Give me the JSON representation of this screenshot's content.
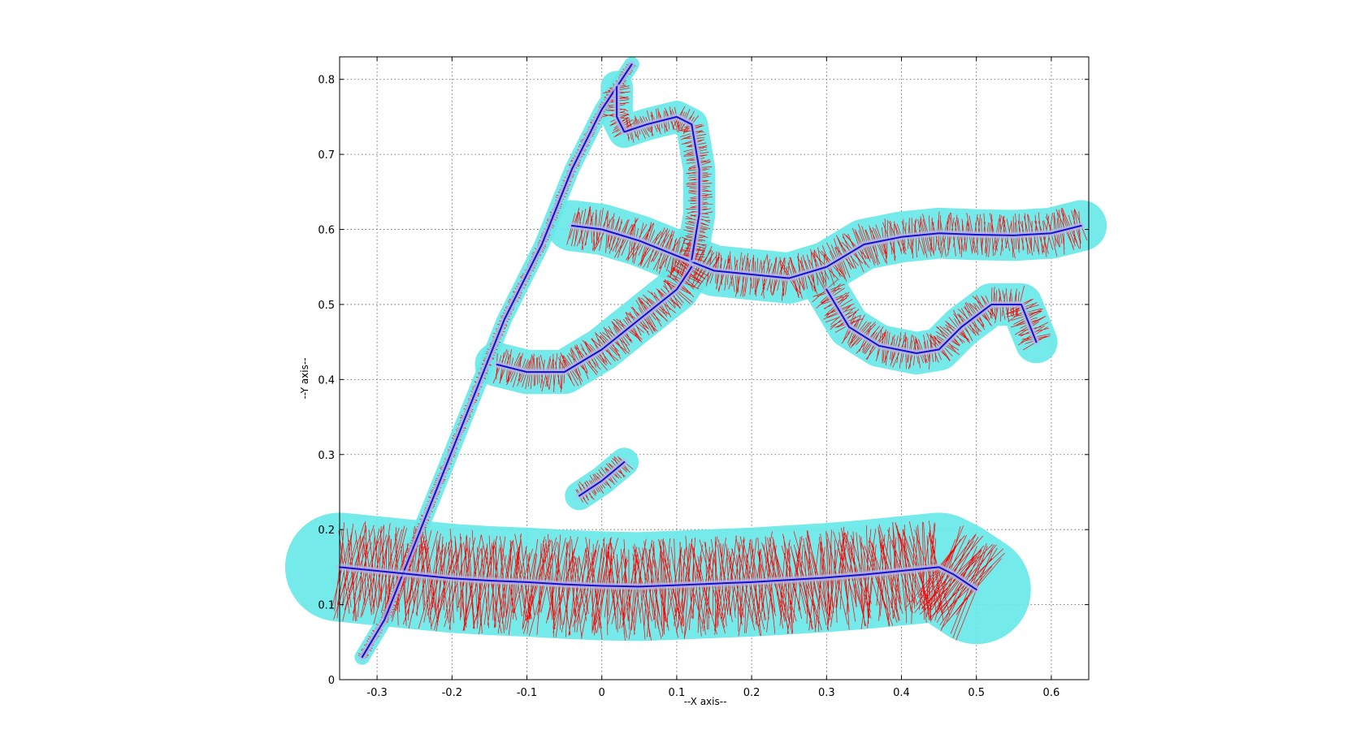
{
  "chart_data": {
    "type": "scatter",
    "title": "",
    "xlabel": "--X axis--",
    "ylabel": "--Y axis--",
    "xlim": [
      -0.35,
      0.65
    ],
    "ylim": [
      0,
      0.83
    ],
    "x_ticks": [
      -0.3,
      -0.2,
      -0.1,
      0,
      0.1,
      0.2,
      0.3,
      0.4,
      0.5,
      0.6
    ],
    "x_tick_labels": [
      "-0.3",
      "-0.2",
      "-0.1",
      "0",
      "0.1",
      "0.2",
      "0.3",
      "0.4",
      "0.5",
      "0.6"
    ],
    "y_ticks": [
      0,
      0.1,
      0.2,
      0.3,
      0.4,
      0.5,
      0.6,
      0.7,
      0.8
    ],
    "y_tick_labels": [
      "0",
      "0.1",
      "0.2",
      "0.3",
      "0.4",
      "0.5",
      "0.6",
      "0.7",
      "0.8"
    ],
    "grid": true,
    "grid_style": "dotted",
    "colors": {
      "envelope": "#66e8e8",
      "normals": "#ff0000",
      "skeleton": "#1010d8",
      "skeleton_light": "#b8b8f0",
      "axes": "#000000",
      "grid": "#555555"
    },
    "series": [
      {
        "type": "line",
        "points": [
          [
            -0.32,
            0.03
          ],
          [
            -0.29,
            0.08
          ],
          [
            -0.25,
            0.18
          ],
          [
            -0.21,
            0.28
          ],
          [
            -0.17,
            0.38
          ],
          [
            -0.13,
            0.48
          ],
          [
            -0.08,
            0.58
          ],
          [
            -0.04,
            0.68
          ],
          [
            0.0,
            0.76
          ],
          [
            0.04,
            0.82
          ]
        ]
      },
      {
        "type": "line",
        "points": [
          [
            -0.35,
            0.15
          ],
          [
            -0.3,
            0.145
          ],
          [
            -0.25,
            0.14
          ],
          [
            -0.2,
            0.135
          ],
          [
            -0.15,
            0.132
          ],
          [
            -0.1,
            0.13
          ],
          [
            -0.05,
            0.127
          ],
          [
            0.0,
            0.125
          ],
          [
            0.05,
            0.124
          ],
          [
            0.1,
            0.126
          ],
          [
            0.15,
            0.128
          ],
          [
            0.2,
            0.13
          ],
          [
            0.25,
            0.133
          ],
          [
            0.3,
            0.136
          ],
          [
            0.35,
            0.14
          ],
          [
            0.4,
            0.145
          ],
          [
            0.45,
            0.15
          ],
          [
            0.47,
            0.14
          ],
          [
            0.5,
            0.12
          ]
        ]
      },
      {
        "type": "line",
        "points": [
          [
            -0.04,
            0.605
          ],
          [
            0.0,
            0.6
          ],
          [
            0.05,
            0.585
          ],
          [
            0.1,
            0.565
          ],
          [
            0.15,
            0.545
          ],
          [
            0.2,
            0.54
          ],
          [
            0.25,
            0.535
          ],
          [
            0.3,
            0.55
          ],
          [
            0.35,
            0.58
          ],
          [
            0.4,
            0.59
          ],
          [
            0.45,
            0.595
          ],
          [
            0.5,
            0.593
          ],
          [
            0.55,
            0.592
          ],
          [
            0.6,
            0.595
          ],
          [
            0.64,
            0.605
          ]
        ]
      },
      {
        "type": "line",
        "points": [
          [
            0.3,
            0.52
          ],
          [
            0.33,
            0.47
          ],
          [
            0.37,
            0.445
          ],
          [
            0.42,
            0.435
          ],
          [
            0.45,
            0.44
          ],
          [
            0.48,
            0.47
          ],
          [
            0.52,
            0.5
          ],
          [
            0.56,
            0.5
          ],
          [
            0.58,
            0.45
          ]
        ]
      },
      {
        "type": "line",
        "points": [
          [
            0.12,
            0.55
          ],
          [
            0.1,
            0.52
          ],
          [
            0.05,
            0.48
          ],
          [
            0.0,
            0.44
          ],
          [
            -0.05,
            0.41
          ],
          [
            -0.1,
            0.41
          ],
          [
            -0.14,
            0.42
          ]
        ]
      },
      {
        "type": "line",
        "points": [
          [
            0.12,
            0.56
          ],
          [
            0.13,
            0.62
          ],
          [
            0.13,
            0.68
          ],
          [
            0.12,
            0.74
          ],
          [
            0.1,
            0.75
          ],
          [
            0.06,
            0.74
          ],
          [
            0.03,
            0.73
          ],
          [
            0.02,
            0.75
          ],
          [
            0.02,
            0.79
          ]
        ]
      },
      {
        "type": "line",
        "points": [
          [
            -0.03,
            0.245
          ],
          [
            0.0,
            0.265
          ],
          [
            0.03,
            0.29
          ]
        ]
      }
    ]
  }
}
